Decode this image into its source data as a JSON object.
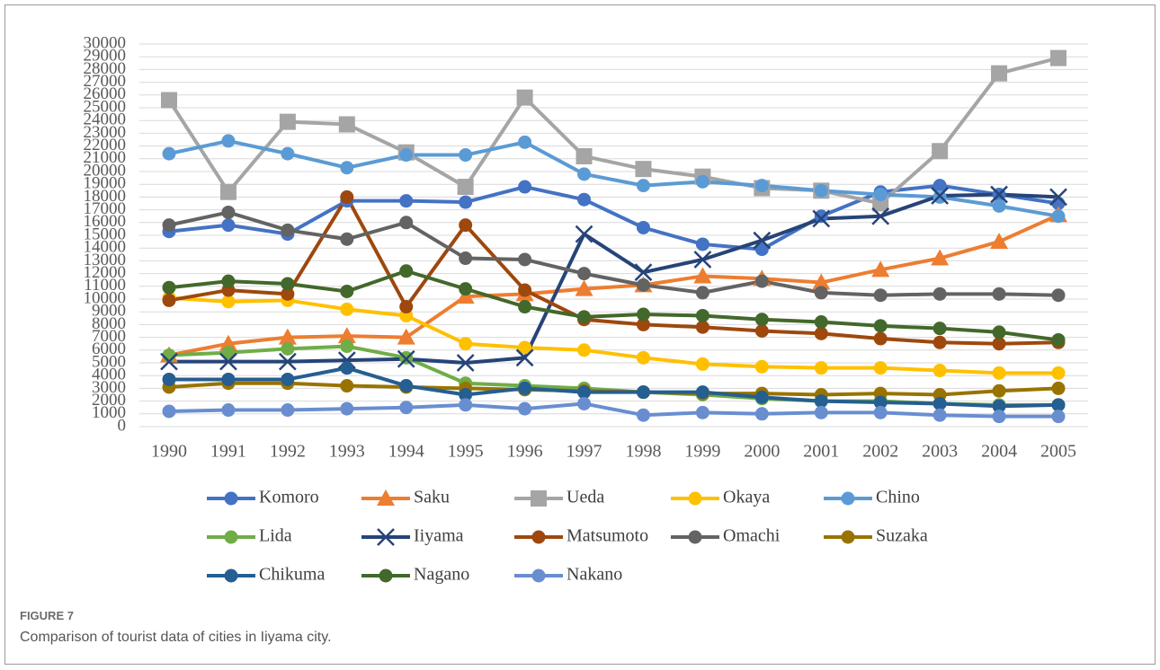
{
  "chart_data": {
    "type": "line",
    "categories": [
      "1990",
      "1991",
      "1992",
      "1993",
      "1994",
      "1995",
      "1996",
      "1997",
      "1998",
      "1999",
      "2000",
      "2001",
      "2002",
      "2003",
      "2004",
      "2005"
    ],
    "ylim": [
      0,
      30000
    ],
    "yticks": [
      0,
      1000,
      2000,
      3000,
      4000,
      5000,
      6000,
      7000,
      8000,
      9000,
      10000,
      11000,
      12000,
      13000,
      14000,
      15000,
      16000,
      17000,
      18000,
      19000,
      20000,
      21000,
      22000,
      23000,
      24000,
      25000,
      26000,
      27000,
      28000,
      29000,
      30000
    ],
    "grid": true,
    "legend": "bottom",
    "series": [
      {
        "name": "Komoro",
        "color": "#4472c4",
        "marker": "circle",
        "values": [
          15300,
          15800,
          15100,
          17700,
          17700,
          17600,
          18800,
          17800,
          15600,
          14300,
          13900,
          16500,
          18400,
          18900,
          18200,
          17500
        ]
      },
      {
        "name": "Saku",
        "color": "#ed7d31",
        "marker": "triangle",
        "values": [
          5600,
          6500,
          7000,
          7100,
          7000,
          10200,
          10400,
          10800,
          11100,
          11800,
          11600,
          11300,
          12300,
          13200,
          14500,
          16600
        ]
      },
      {
        "name": "Ueda",
        "color": "#a5a5a5",
        "marker": "square",
        "values": [
          25600,
          18400,
          23900,
          23700,
          21500,
          18800,
          25800,
          21200,
          20200,
          19600,
          18700,
          18500,
          17500,
          21600,
          27700,
          28900
        ]
      },
      {
        "name": "Okaya",
        "color": "#ffc000",
        "marker": "circle",
        "values": [
          10100,
          9800,
          9900,
          9200,
          8700,
          6500,
          6200,
          6000,
          5400,
          4900,
          4700,
          4600,
          4600,
          4400,
          4200,
          4200
        ]
      },
      {
        "name": "Chino",
        "color": "#5b9bd5",
        "marker": "circle",
        "values": [
          21400,
          22400,
          21400,
          20300,
          21300,
          21300,
          22300,
          19800,
          18900,
          19200,
          18900,
          18500,
          18200,
          18000,
          17300,
          16500
        ]
      },
      {
        "name": "Lida",
        "color": "#70ad47",
        "marker": "circle",
        "values": [
          5600,
          5800,
          6100,
          6300,
          5400,
          3400,
          3200,
          3000,
          2700,
          2500,
          2200,
          2000,
          2000,
          1800,
          1700,
          1700
        ]
      },
      {
        "name": "Iiyama",
        "color": "#264478",
        "marker": "x",
        "values": [
          5100,
          5100,
          5100,
          5200,
          5300,
          5000,
          5400,
          15100,
          12100,
          13100,
          14600,
          16300,
          16500,
          18100,
          18200,
          18000
        ]
      },
      {
        "name": "Matsumoto",
        "color": "#9e480e",
        "marker": "circle",
        "values": [
          9900,
          10700,
          10400,
          18000,
          9400,
          15800,
          10700,
          8400,
          8000,
          7800,
          7500,
          7300,
          6900,
          6600,
          6500,
          6600
        ]
      },
      {
        "name": "Omachi",
        "color": "#636363",
        "marker": "circle",
        "values": [
          15800,
          16800,
          15400,
          14700,
          16000,
          13200,
          13100,
          12000,
          11100,
          10500,
          11400,
          10500,
          10300,
          10400,
          10400,
          10300
        ]
      },
      {
        "name": "Suzaka",
        "color": "#997300",
        "marker": "circle",
        "values": [
          3100,
          3400,
          3400,
          3200,
          3100,
          3000,
          2900,
          2800,
          2700,
          2600,
          2600,
          2500,
          2600,
          2500,
          2800,
          3000
        ]
      },
      {
        "name": "Chikuma",
        "color": "#255e91",
        "marker": "circle",
        "values": [
          3700,
          3700,
          3700,
          4600,
          3200,
          2500,
          3000,
          2700,
          2700,
          2700,
          2300,
          2000,
          1900,
          1800,
          1600,
          1700
        ]
      },
      {
        "name": "Nagano",
        "color": "#43682b",
        "marker": "circle",
        "values": [
          10900,
          11400,
          11200,
          10600,
          12200,
          10800,
          9400,
          8600,
          8800,
          8700,
          8400,
          8200,
          7900,
          7700,
          7400,
          6800
        ]
      },
      {
        "name": "Nakano",
        "color": "#698ed0",
        "marker": "circle",
        "values": [
          1200,
          1300,
          1300,
          1400,
          1500,
          1700,
          1400,
          1800,
          900,
          1100,
          1000,
          1100,
          1100,
          900,
          800,
          800
        ]
      }
    ]
  },
  "caption": {
    "label": "FIGURE 7",
    "text": "Comparison of tourist data of cities in Iiyama city."
  }
}
